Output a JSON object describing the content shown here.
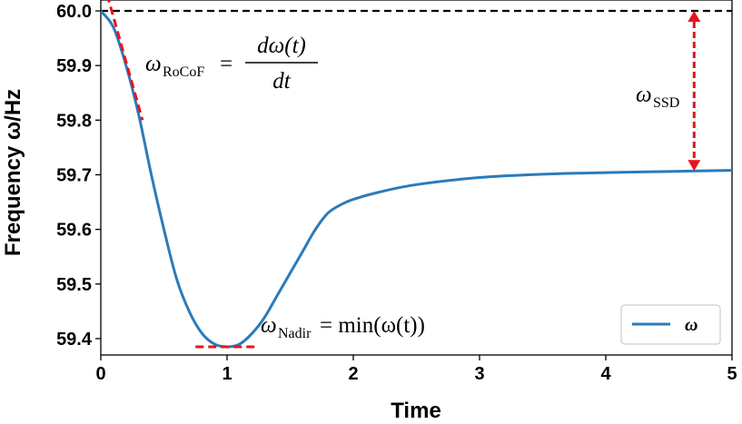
{
  "chart_data": {
    "type": "line",
    "xlabel": "Time",
    "ylabel": "Frequency ω/Hz",
    "xlim": [
      0,
      5
    ],
    "ylim": [
      59.37,
      60.02
    ],
    "xticks": [
      "0",
      "1",
      "2",
      "3",
      "4",
      "5"
    ],
    "yticks": [
      "59.4",
      "59.5",
      "59.6",
      "59.7",
      "59.8",
      "59.9",
      "60.0"
    ],
    "grid": false,
    "legend": {
      "position": "bottom-right",
      "entries": [
        "ω"
      ]
    },
    "colors": {
      "series": "#2b7bba",
      "reference": "#000000",
      "annotation": "#e8141c"
    },
    "series": [
      {
        "name": "ω",
        "x": [
          0.0,
          0.1,
          0.2,
          0.3,
          0.4,
          0.5,
          0.6,
          0.7,
          0.8,
          0.9,
          1.0,
          1.1,
          1.2,
          1.3,
          1.4,
          1.5,
          1.6,
          1.7,
          1.8,
          1.9,
          2.0,
          2.2,
          2.5,
          3.0,
          3.5,
          4.0,
          4.5,
          5.0
        ],
        "y": [
          60.0,
          59.97,
          59.9,
          59.81,
          59.7,
          59.6,
          59.51,
          59.45,
          59.41,
          59.39,
          59.385,
          59.39,
          59.41,
          59.44,
          59.48,
          59.52,
          59.56,
          59.6,
          59.63,
          59.645,
          59.655,
          59.668,
          59.682,
          59.695,
          59.701,
          59.704,
          59.706,
          59.708
        ]
      }
    ],
    "reference_line": {
      "y": 60.0
    },
    "annotations": {
      "rocof": {
        "label": "ω",
        "subscript": "RoCoF",
        "equals": "=",
        "numerator": "dω(t)",
        "denominator": "dt",
        "tangent": {
          "x": [
            0.05,
            0.33
          ],
          "y": [
            60.03,
            59.8
          ]
        }
      },
      "ssd": {
        "label": "ω",
        "subscript": "SSD",
        "x": 4.7,
        "y_top": 60.0,
        "y_bottom": 59.707
      },
      "nadir": {
        "label": "ω",
        "subscript": "Nadir",
        "expression": "= min(ω(t))",
        "segment": {
          "x": [
            0.75,
            1.25
          ],
          "y": 59.385
        }
      }
    }
  }
}
